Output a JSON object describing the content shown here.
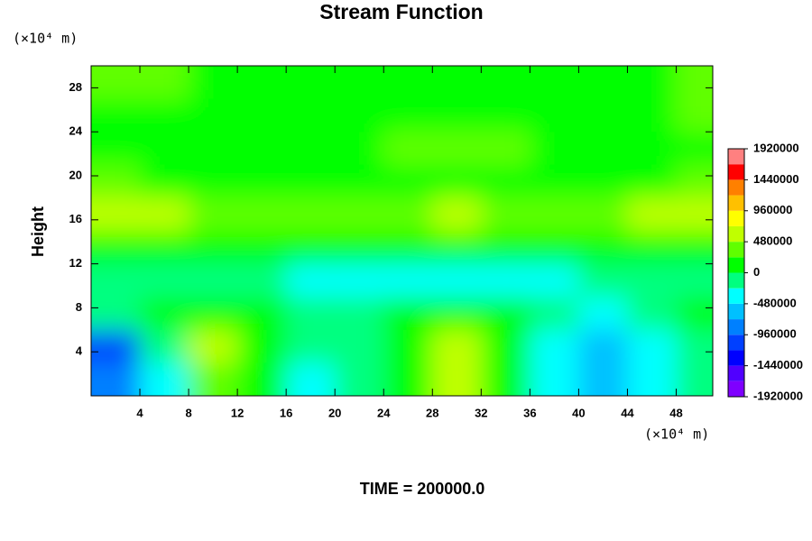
{
  "chart_data": {
    "type": "contour",
    "title": "Stream Function",
    "ylabel": "Height",
    "xunit": "(×10⁴ m)",
    "yunit": "(×10⁴ m)",
    "annotation": "TIME = 200000.0",
    "xlim": [
      0,
      51
    ],
    "ylim": [
      0,
      30
    ],
    "xticks": [
      4,
      8,
      12,
      16,
      20,
      24,
      28,
      32,
      36,
      40,
      44,
      48
    ],
    "yticks": [
      4,
      8,
      12,
      16,
      20,
      24,
      28
    ],
    "x": [
      2,
      6,
      10,
      14,
      18,
      22,
      26,
      30,
      34,
      38,
      42,
      46,
      50
    ],
    "y": [
      1.5,
      4.5,
      7.5,
      10.5,
      13.5,
      16.5,
      19.5,
      22.5,
      25.5,
      28.5
    ],
    "z": [
      [
        -900000,
        -300000,
        400000,
        100000,
        -250000,
        -150000,
        0,
        500000,
        100000,
        -300000,
        -500000,
        -300000,
        -100000
      ],
      [
        -1000000,
        -200000,
        600000,
        150000,
        -150000,
        -100000,
        100000,
        650000,
        150000,
        -350000,
        -650000,
        -350000,
        -50000
      ],
      [
        -100000,
        0,
        200000,
        50000,
        -100000,
        -150000,
        0,
        200000,
        0,
        -200000,
        -250000,
        -100000,
        0
      ],
      [
        -150000,
        -200000,
        -150000,
        -200000,
        -250000,
        -250000,
        -250000,
        -250000,
        -250000,
        -250000,
        -200000,
        -150000,
        -100000
      ],
      [
        100000,
        50000,
        100000,
        50000,
        0,
        50000,
        50000,
        100000,
        50000,
        50000,
        100000,
        150000,
        200000
      ],
      [
        600000,
        550000,
        400000,
        300000,
        350000,
        300000,
        450000,
        500000,
        450000,
        400000,
        350000,
        500000,
        650000
      ],
      [
        250000,
        200000,
        150000,
        150000,
        150000,
        100000,
        150000,
        150000,
        100000,
        150000,
        150000,
        200000,
        250000
      ],
      [
        50000,
        50000,
        50000,
        50000,
        50000,
        100000,
        250000,
        250000,
        250000,
        100000,
        50000,
        50000,
        50000
      ],
      [
        200000,
        200000,
        150000,
        50000,
        50000,
        50000,
        100000,
        100000,
        100000,
        50000,
        50000,
        150000,
        250000
      ],
      [
        250000,
        250000,
        150000,
        50000,
        50000,
        50000,
        50000,
        50000,
        50000,
        50000,
        50000,
        150000,
        250000
      ]
    ],
    "clim": [
      -1920000,
      1920000
    ],
    "cticks": [
      -1920000,
      -1440000,
      -960000,
      -480000,
      0,
      480000,
      960000,
      1440000,
      1920000
    ],
    "colors": [
      "#7f00ff",
      "#5000ff",
      "#0000ff",
      "#0040ff",
      "#0080ff",
      "#00c0ff",
      "#00ffff",
      "#00ff80",
      "#00ff00",
      "#60ff00",
      "#c0ff00",
      "#ffff00",
      "#ffc000",
      "#ff8000",
      "#ff0000",
      "#ff8080"
    ]
  }
}
